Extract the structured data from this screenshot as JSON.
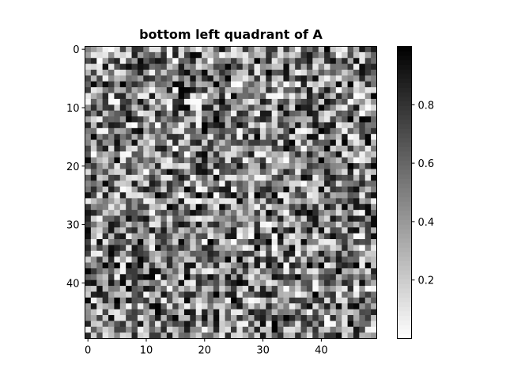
{
  "chart_data": {
    "type": "heatmap",
    "title": "bottom left quadrant of A",
    "xlabel": "",
    "ylabel": "",
    "rows": 50,
    "cols": 50,
    "x_ticks": [
      "0",
      "10",
      "20",
      "30",
      "40"
    ],
    "y_ticks": [
      "0",
      "10",
      "20",
      "30",
      "40"
    ],
    "colorbar_ticks": [
      "0.2",
      "0.4",
      "0.6",
      "0.8"
    ],
    "colorbar_range": [
      0,
      1
    ],
    "colormap": "grey, 0 = white, 1 = black",
    "colors": {
      "low": "#ffffff",
      "high": "#000000",
      "frame": "#000000"
    },
    "values_note": "random uniform [0,1] matrix (seeded)",
    "seed": 20240517
  }
}
